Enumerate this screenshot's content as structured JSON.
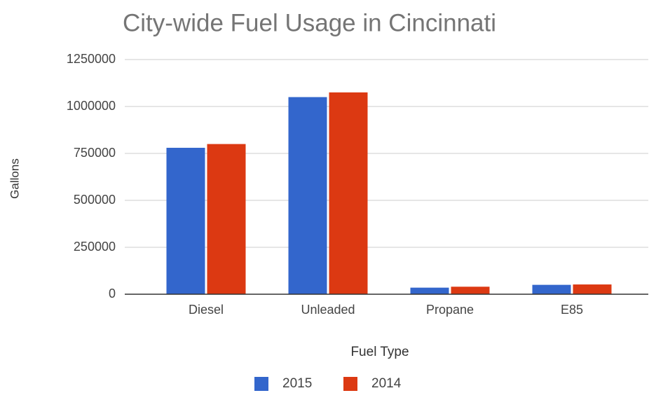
{
  "chart_data": {
    "type": "bar",
    "title": "City-wide Fuel Usage in Cincinnati",
    "x_label": "Fuel Type",
    "y_label": "Gallons",
    "categories": [
      "Diesel",
      "Unleaded",
      "Propane",
      "E85"
    ],
    "series": [
      {
        "name": "2015",
        "color": "#3366cc",
        "values": [
          780000,
          1050000,
          35000,
          50000
        ]
      },
      {
        "name": "2014",
        "color": "#dc3912",
        "values": [
          800000,
          1075000,
          40000,
          52000
        ]
      }
    ],
    "ylim": [
      0,
      1250000
    ],
    "yticks": [
      0,
      250000,
      500000,
      750000,
      1000000,
      1250000
    ],
    "grid": true,
    "legend": "bottom"
  }
}
